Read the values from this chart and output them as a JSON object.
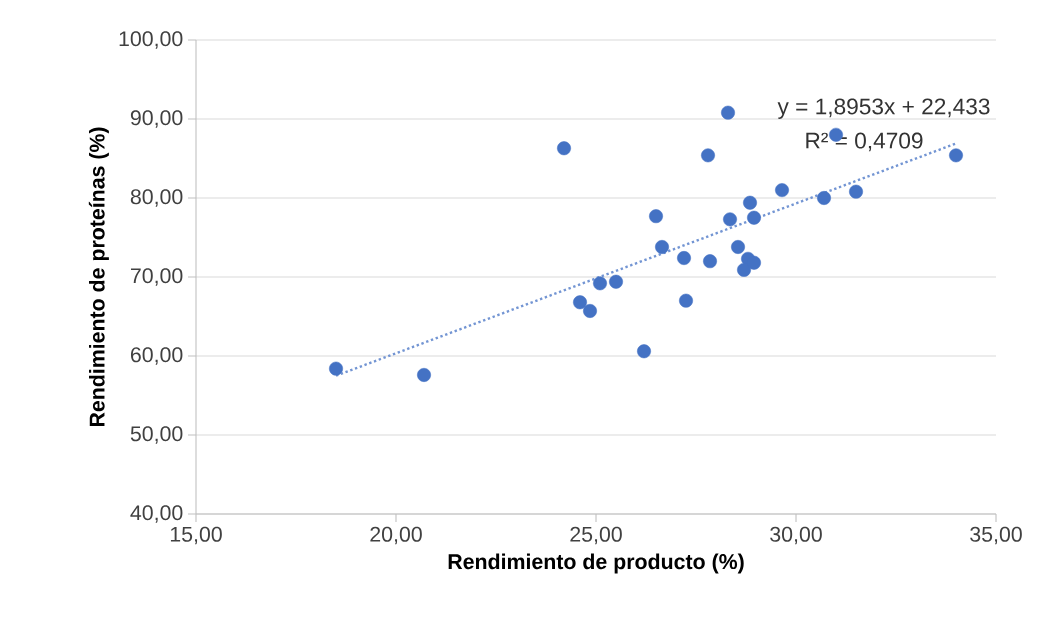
{
  "chart_data": {
    "type": "scatter",
    "xlabel": "Rendimiento  de producto (%)",
    "ylabel": "Rendimiento  de proteínas (%)",
    "xlim": [
      15,
      35
    ],
    "ylim": [
      40,
      100
    ],
    "xticks": [
      {
        "value": 15,
        "label": "15,00"
      },
      {
        "value": 20,
        "label": "20,00"
      },
      {
        "value": 25,
        "label": "25,00"
      },
      {
        "value": 30,
        "label": "30,00"
      },
      {
        "value": 35,
        "label": "35,00"
      }
    ],
    "yticks": [
      {
        "value": 40,
        "label": "40,00"
      },
      {
        "value": 50,
        "label": "50,00"
      },
      {
        "value": 60,
        "label": "60,00"
      },
      {
        "value": 70,
        "label": "70,00"
      },
      {
        "value": 80,
        "label": "80,00"
      },
      {
        "value": 90,
        "label": "90,00"
      },
      {
        "value": 100,
        "label": "100,00"
      }
    ],
    "grid": "y",
    "marker": "circle",
    "series": [
      {
        "color": "#4472c4",
        "x": [
          18.5,
          20.7,
          24.2,
          24.6,
          24.85,
          25.1,
          25.5,
          26.2,
          26.5,
          26.65,
          27.2,
          27.25,
          27.85,
          27.8,
          28.3,
          28.35,
          28.55,
          28.8,
          28.7,
          28.95,
          28.85,
          28.95,
          29.65,
          30.7,
          31.0,
          31.5,
          34.0
        ],
        "values": [
          58.4,
          57.6,
          86.3,
          66.8,
          65.7,
          69.2,
          69.4,
          60.6,
          77.7,
          73.8,
          72.4,
          67.0,
          72.0,
          85.4,
          90.8,
          77.3,
          73.8,
          72.3,
          70.9,
          71.8,
          79.4,
          77.5,
          81.0,
          80.0,
          88.0,
          80.8,
          85.4
        ]
      },
      {
        "type": "line",
        "color": "#7395d3",
        "line_style": "dotted",
        "marker": "none",
        "x": [
          18.5,
          34.0
        ],
        "values": [
          57.5,
          86.9
        ]
      }
    ],
    "annotations": [
      "y = 1,8953x  + 22,433",
      "R² = 0,4709"
    ]
  }
}
